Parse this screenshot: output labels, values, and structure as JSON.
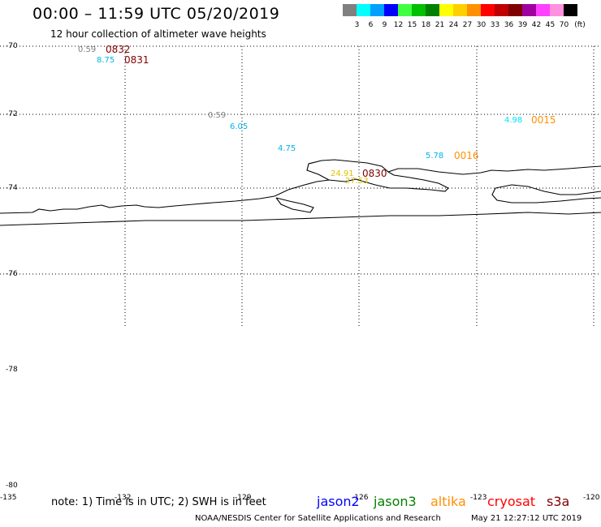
{
  "header": {
    "title": "00:00 – 11:59 UTC 05/20/2019",
    "subtitle": "12 hour collection of altimeter wave heights"
  },
  "legend": {
    "unit": "(ft)",
    "bins": [
      {
        "label": "3",
        "color": "#808080"
      },
      {
        "label": "6",
        "color": "#00ffff"
      },
      {
        "label": "9",
        "color": "#00a0ff"
      },
      {
        "label": "12",
        "color": "#0000ff"
      },
      {
        "label": "15",
        "color": "#40ff40"
      },
      {
        "label": "18",
        "color": "#00c000"
      },
      {
        "label": "21",
        "color": "#008000"
      },
      {
        "label": "24",
        "color": "#ffff00"
      },
      {
        "label": "27",
        "color": "#ffd000"
      },
      {
        "label": "30",
        "color": "#ff9000"
      },
      {
        "label": "33",
        "color": "#ff0000"
      },
      {
        "label": "36",
        "color": "#c00000"
      },
      {
        "label": "39",
        "color": "#800000"
      },
      {
        "label": "42",
        "color": "#a000a0"
      },
      {
        "label": "45",
        "color": "#ff40ff"
      },
      {
        "label": "70",
        "color": "#ff90e0"
      },
      {
        "label": "",
        "color": "#000000"
      }
    ]
  },
  "axes": {
    "lat_labels": [
      "-70",
      "-72",
      "-74",
      "-76",
      "-78",
      "-80"
    ],
    "lon_labels": [
      "-135",
      "-132",
      "-129",
      "-126",
      "-123",
      "-120"
    ]
  },
  "measurements": [
    {
      "text": "0.59",
      "color": "#808080"
    },
    {
      "text": "8.75",
      "color": "#00b4e6"
    },
    {
      "text": "0.59",
      "color": "#808080"
    },
    {
      "text": "6.05",
      "color": "#00b4e6"
    },
    {
      "text": "4.75",
      "color": "#00b4e6"
    },
    {
      "text": "5.78",
      "color": "#00b4e6"
    },
    {
      "text": "4.98",
      "color": "#00e0ff"
    },
    {
      "text": "24.91",
      "color": "#e0c000"
    },
    {
      "text": "27.53",
      "color": "#e0c000"
    }
  ],
  "passes": [
    {
      "text": "0832",
      "color": "#800000"
    },
    {
      "text": "0831",
      "color": "#800000"
    },
    {
      "text": "0015",
      "color": "#ff9000"
    },
    {
      "text": "0016",
      "color": "#ff9000"
    },
    {
      "text": "0830",
      "color": "#800000"
    }
  ],
  "footer": {
    "note": "note: 1) Time is in UTC; 2) SWH is in feet",
    "satellites": [
      {
        "name": "jason2",
        "color": "#0000ff"
      },
      {
        "name": "jason3",
        "color": "#008000"
      },
      {
        "name": "altika",
        "color": "#ff9000"
      },
      {
        "name": "cryosat",
        "color": "#ff0000"
      },
      {
        "name": "s3a",
        "color": "#800000"
      }
    ],
    "credit": "NOAA/NESDIS Center for Satellite Applications and Research",
    "timestamp": "May 21 12:27:12 UTC 2019"
  }
}
